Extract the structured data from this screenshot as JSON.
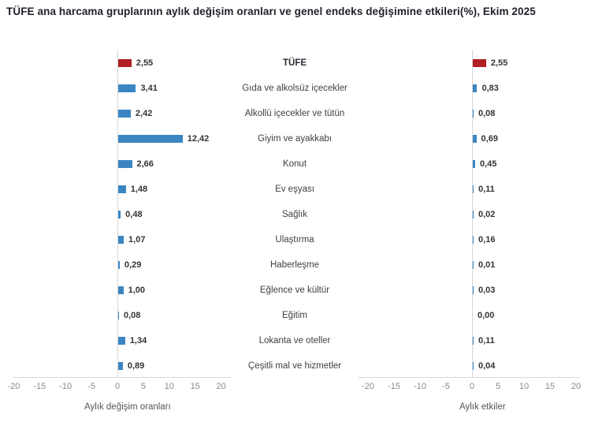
{
  "title": "TÜFE ana harcama gruplarının aylık değişim oranları ve genel endeks değişimine etkileri(%), Ekim 2025",
  "colors": {
    "bar_blue": "#3b86c2",
    "bar_red": "#b01f24",
    "axis_line": "#d9d9d9",
    "tick_text": "#8a8a8a",
    "category_text": "#3f3f3f",
    "value_text": "#333333",
    "legend_text": "#555555",
    "title_text": "#21212b"
  },
  "chart_data": {
    "type": "bar",
    "orientation": "horizontal",
    "categories": [
      "TÜFE",
      "Gıda ve alkolsüz içecekler",
      "Alkollü içecekler ve tütün",
      "Giyim ve ayakkabı",
      "Konut",
      "Ev eşyası",
      "Sağlık",
      "Ulaştırma",
      "Haberleşme",
      "Eğlence ve kültür",
      "Eğitim",
      "Lokanta ve oteller",
      "Çeşitli mal ve hizmetler"
    ],
    "series": [
      {
        "name": "Aylık değişim oranları",
        "values": [
          2.55,
          3.41,
          2.42,
          12.42,
          2.66,
          1.48,
          0.48,
          1.07,
          0.29,
          1.0,
          0.08,
          1.34,
          0.89
        ]
      },
      {
        "name": "Aylık etkiler",
        "values": [
          2.55,
          0.83,
          0.08,
          0.69,
          0.45,
          0.11,
          0.02,
          0.16,
          0.01,
          0.03,
          0.0,
          0.11,
          0.04
        ]
      }
    ],
    "xlim": [
      -20,
      20
    ],
    "xticks": [
      -20,
      -15,
      -10,
      -5,
      0,
      5,
      10,
      15,
      20
    ],
    "highlight_category": "TÜFE",
    "value_decimals": 2,
    "decimal_separator": ",",
    "grid": false,
    "legend_position": "bottom"
  }
}
